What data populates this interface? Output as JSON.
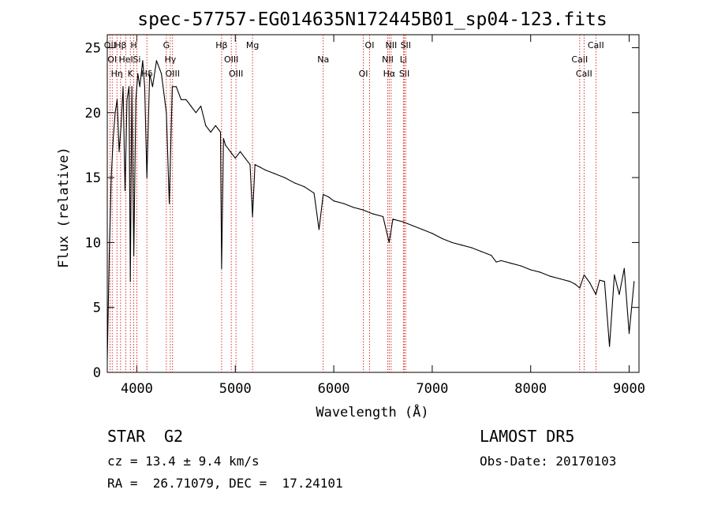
{
  "chart_data": {
    "type": "line",
    "title": "spec-57757-EG014635N172445B01_sp04-123.fits",
    "xlabel": "Wavelength (Å)",
    "ylabel": "Flux (relative)",
    "xlim": [
      3700,
      9100
    ],
    "ylim": [
      0,
      26
    ],
    "xticks": [
      4000,
      5000,
      6000,
      7000,
      8000,
      9000
    ],
    "yticks": [
      0,
      5,
      10,
      15,
      20,
      25
    ],
    "grid": false,
    "series": [
      {
        "color": "#000000",
        "x": [
          3700,
          3720,
          3740,
          3760,
          3780,
          3800,
          3820,
          3840,
          3860,
          3880,
          3900,
          3920,
          3934,
          3950,
          3969,
          3990,
          4010,
          4030,
          4060,
          4080,
          4102,
          4130,
          4160,
          4200,
          4250,
          4300,
          4330,
          4340,
          4360,
          4400,
          4450,
          4500,
          4550,
          4600,
          4650,
          4700,
          4750,
          4800,
          4850,
          4861,
          4880,
          4900,
          4950,
          5000,
          5050,
          5100,
          5150,
          5175,
          5200,
          5250,
          5300,
          5400,
          5500,
          5600,
          5700,
          5800,
          5850,
          5893,
          5950,
          6000,
          6100,
          6200,
          6300,
          6400,
          6500,
          6563,
          6600,
          6700,
          6800,
          6900,
          7000,
          7100,
          7200,
          7300,
          7400,
          7500,
          7600,
          7650,
          7700,
          7800,
          7900,
          8000,
          8100,
          8200,
          8300,
          8400,
          8450,
          8498,
          8542,
          8600,
          8662,
          8700,
          8750,
          8800,
          8850,
          8900,
          8950,
          9000,
          9050
        ],
        "y": [
          1,
          9,
          15,
          18,
          20,
          21,
          17,
          19,
          22,
          14,
          21,
          22,
          7,
          22,
          9,
          21,
          23,
          22,
          24,
          22,
          15,
          23,
          22,
          24,
          23,
          20,
          13,
          16,
          22,
          22,
          21,
          21,
          20.5,
          20,
          20.5,
          19,
          18.5,
          19,
          18.5,
          8,
          18,
          17.5,
          17,
          16.5,
          17,
          16.5,
          16,
          12,
          16,
          15.8,
          15.6,
          15.3,
          15,
          14.6,
          14.3,
          13.8,
          11,
          13.7,
          13.5,
          13.2,
          13,
          12.7,
          12.5,
          12.2,
          12,
          10,
          11.8,
          11.6,
          11.3,
          11,
          10.7,
          10.3,
          10,
          9.8,
          9.6,
          9.3,
          9,
          8.5,
          8.6,
          8.4,
          8.2,
          7.9,
          7.7,
          7.4,
          7.2,
          7,
          6.8,
          6.5,
          7.5,
          6.9,
          6,
          7.1,
          7,
          2,
          7.5,
          6,
          8,
          3,
          7
        ]
      }
    ],
    "lines": [
      {
        "x": 3727,
        "label": "OII"
      },
      {
        "x": 3750,
        "label": "OI"
      },
      {
        "x": 3798,
        "label": "Hη"
      },
      {
        "x": 3835,
        "label": "Hβ"
      },
      {
        "x": 3889,
        "label": "HeI"
      },
      {
        "x": 3934,
        "label": "K"
      },
      {
        "x": 3969,
        "label": "H"
      },
      {
        "x": 4000,
        "label": "Si"
      },
      {
        "x": 4102,
        "label": "Hδ"
      },
      {
        "x": 4300,
        "label": "G"
      },
      {
        "x": 4340,
        "label": "Hγ"
      },
      {
        "x": 4363,
        "label": "OIII"
      },
      {
        "x": 4861,
        "label": "Hβ"
      },
      {
        "x": 4959,
        "label": "OIII"
      },
      {
        "x": 5007,
        "label": "OIII"
      },
      {
        "x": 5175,
        "label": "Mg"
      },
      {
        "x": 5893,
        "label": "Na"
      },
      {
        "x": 6300,
        "label": "OI"
      },
      {
        "x": 6364,
        "label": "OI"
      },
      {
        "x": 6548,
        "label": "NII"
      },
      {
        "x": 6563,
        "label": "Hα"
      },
      {
        "x": 6583,
        "label": "NII"
      },
      {
        "x": 6707,
        "label": "Li"
      },
      {
        "x": 6717,
        "label": "SII"
      },
      {
        "x": 6731,
        "label": "SII"
      },
      {
        "x": 8498,
        "label": "CaII"
      },
      {
        "x": 8542,
        "label": "CaII"
      },
      {
        "x": 8662,
        "label": "CaII"
      }
    ]
  },
  "footer": {
    "class_label": "STAR",
    "subclass": "G2",
    "redshift": "cz = 13.4 ± 9.4 km/s",
    "coords": "RA =  26.71079, DEC =  17.24101",
    "survey": "LAMOST DR5",
    "obs_date": "Obs-Date: 20170103"
  }
}
